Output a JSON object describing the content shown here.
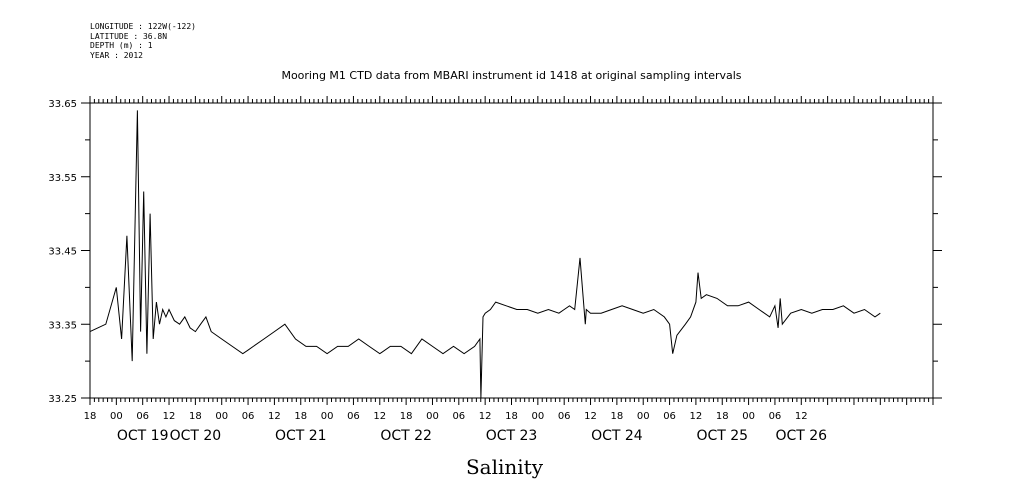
{
  "meta": {
    "longitude": "LONGITUDE : 122W(-122)",
    "latitude": "LATITUDE : 36.8N",
    "depth": "DEPTH (m) : 1",
    "year": "YEAR : 2012"
  },
  "chart_data": {
    "type": "line",
    "title": "Mooring M1 CTD data from MBARI instrument id 1418 at original sampling intervals",
    "xlabel": "",
    "ylabel": "",
    "variable_label": "Salinity",
    "xlim": [
      -0.75,
      7.25
    ],
    "ylim": [
      33.25,
      33.65
    ],
    "y_ticks": [
      "33.65",
      "33.55",
      "33.45",
      "33.35",
      "33.25"
    ],
    "x_hour_labels": [
      "18",
      "00",
      "06",
      "12",
      "18",
      "00",
      "06",
      "12",
      "18",
      "00",
      "06",
      "12",
      "18",
      "00",
      "06",
      "12",
      "18",
      "00",
      "06",
      "12",
      "18",
      "00",
      "06",
      "12",
      "18",
      "00",
      "06",
      "12"
    ],
    "x_day_labels": [
      "OCT 19",
      "OCT 20",
      "OCT 21",
      "OCT 22",
      "OCT 23",
      "OCT 24",
      "OCT 25",
      "OCT 26"
    ],
    "line_color": "#000000",
    "series": [
      {
        "x": [
          -0.75,
          -0.6,
          -0.5,
          -0.45,
          -0.4,
          -0.35,
          -0.3,
          -0.27,
          -0.24,
          -0.21,
          -0.18,
          -0.15,
          -0.12,
          -0.09,
          -0.06,
          -0.03,
          0.0,
          0.05,
          0.1,
          0.15,
          0.2,
          0.25,
          0.3,
          0.35,
          0.4,
          0.5,
          0.6,
          0.7,
          0.75,
          0.8,
          0.9,
          1.0,
          1.1,
          1.2,
          1.3,
          1.4,
          1.5,
          1.6,
          1.7,
          1.8,
          1.9,
          2.0,
          2.1,
          2.2,
          2.3,
          2.4,
          2.5,
          2.6,
          2.7,
          2.8,
          2.9,
          2.95,
          2.96,
          2.98,
          3.0,
          3.05,
          3.1,
          3.2,
          3.3,
          3.4,
          3.5,
          3.6,
          3.7,
          3.75,
          3.8,
          3.85,
          3.9,
          3.95,
          3.96,
          4.0,
          4.1,
          4.2,
          4.3,
          4.4,
          4.5,
          4.6,
          4.7,
          4.75,
          4.78,
          4.82,
          4.9,
          4.95,
          5.0,
          5.02,
          5.05,
          5.1,
          5.2,
          5.3,
          5.4,
          5.5,
          5.6,
          5.7,
          5.75,
          5.78,
          5.8,
          5.82,
          5.9,
          6.0,
          6.1,
          6.2,
          6.3,
          6.4,
          6.5,
          6.6,
          6.7,
          6.75
        ],
        "y": [
          33.34,
          33.35,
          33.4,
          33.33,
          33.47,
          33.3,
          33.64,
          33.34,
          33.53,
          33.31,
          33.5,
          33.33,
          33.38,
          33.35,
          33.37,
          33.36,
          33.37,
          33.355,
          33.35,
          33.36,
          33.345,
          33.34,
          33.35,
          33.36,
          33.34,
          33.33,
          33.32,
          33.31,
          33.315,
          33.32,
          33.33,
          33.34,
          33.35,
          33.33,
          33.32,
          33.32,
          33.31,
          33.32,
          33.32,
          33.33,
          33.32,
          33.31,
          33.32,
          33.32,
          33.31,
          33.33,
          33.32,
          33.31,
          33.32,
          33.31,
          33.32,
          33.33,
          33.25,
          33.36,
          33.365,
          33.37,
          33.38,
          33.375,
          33.37,
          33.37,
          33.365,
          33.37,
          33.365,
          33.37,
          33.375,
          33.37,
          33.44,
          33.35,
          33.37,
          33.365,
          33.365,
          33.37,
          33.375,
          33.37,
          33.365,
          33.37,
          33.36,
          33.35,
          33.31,
          33.335,
          33.35,
          33.36,
          33.38,
          33.42,
          33.385,
          33.39,
          33.385,
          33.375,
          33.375,
          33.38,
          33.37,
          33.36,
          33.375,
          33.345,
          33.385,
          33.35,
          33.365,
          33.37,
          33.365,
          33.37,
          33.37,
          33.375,
          33.365,
          33.37,
          33.36,
          33.365
        ]
      }
    ]
  }
}
